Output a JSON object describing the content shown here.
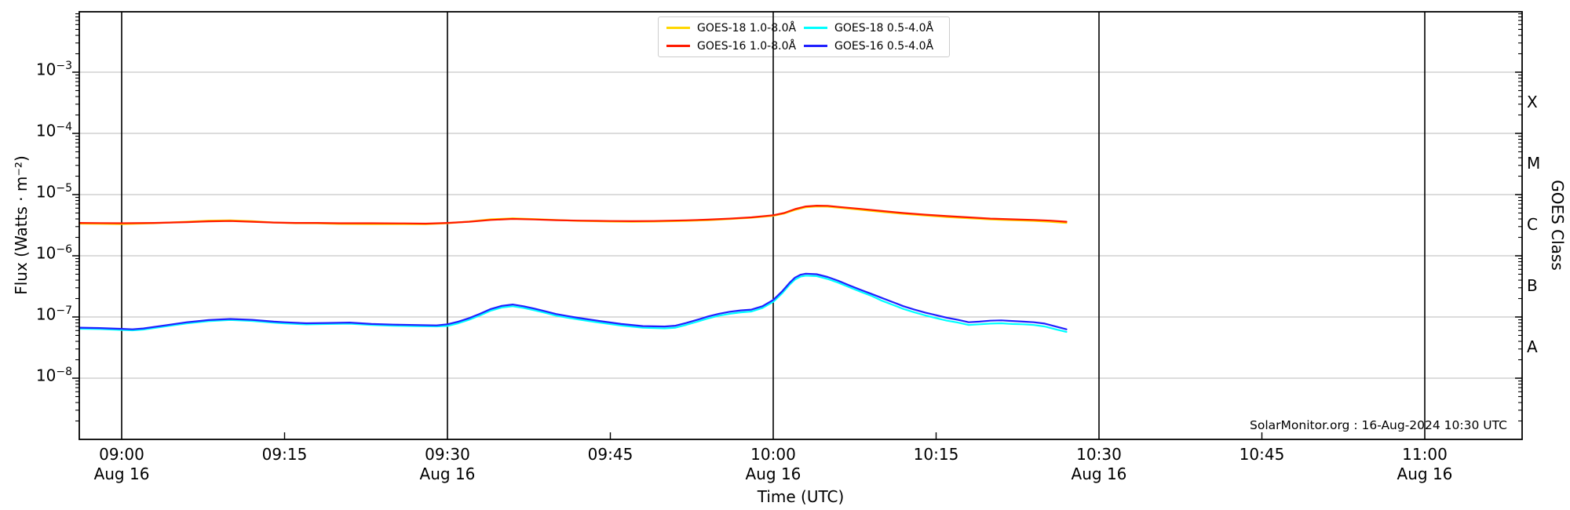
{
  "chart_data": {
    "type": "line",
    "title": "",
    "annotation": "SolarMonitor.org : 16-Aug-2024 10:30 UTC",
    "x_axis": {
      "label": "Time (UTC)",
      "visible_range_utc": [
        "08:56",
        "11:09"
      ],
      "date": "16-Aug-2024",
      "major_ticks": [
        {
          "t": 0,
          "time": "09:00",
          "date": "Aug 16"
        },
        {
          "t": 30,
          "time": "09:30",
          "date": "Aug 16"
        },
        {
          "t": 60,
          "time": "10:00",
          "date": "Aug 16"
        },
        {
          "t": 90,
          "time": "10:30",
          "date": "Aug 16"
        },
        {
          "t": 120,
          "time": "11:00",
          "date": "Aug 16"
        }
      ],
      "minor_ticks": [
        {
          "t": 15,
          "time": "09:15"
        },
        {
          "t": 45,
          "time": "09:45"
        },
        {
          "t": 75,
          "time": "10:15"
        },
        {
          "t": 105,
          "time": "10:45"
        }
      ]
    },
    "y_axis": {
      "label": "Flux (Watts · m⁻²)",
      "scale": "log",
      "log_min_exponent": -9,
      "log_max_exponent": -2,
      "tick_exponents": [
        -3,
        -4,
        -5,
        -6,
        -7,
        -8
      ]
    },
    "right_axis": {
      "label": "GOES Class",
      "classes": [
        {
          "label": "X",
          "mid_exponent": -3.5
        },
        {
          "label": "M",
          "mid_exponent": -4.5
        },
        {
          "label": "C",
          "mid_exponent": -5.5
        },
        {
          "label": "B",
          "mid_exponent": -6.5
        },
        {
          "label": "A",
          "mid_exponent": -7.5
        }
      ]
    },
    "legend": {
      "items": [
        {
          "label": "GOES-18 1.0-8.0Å",
          "color": "#ffd700"
        },
        {
          "label": "GOES-16 1.0-8.0Å",
          "color": "#ff1a00"
        },
        {
          "label": "GOES-18 0.5-4.0Å",
          "color": "#00ffff"
        },
        {
          "label": "GOES-16 0.5-4.0Å",
          "color": "#2020ff"
        }
      ]
    },
    "series": [
      {
        "name": "GOES-18 1.0-8.0Å",
        "color": "#ffd700",
        "points": [
          [
            -3.9,
            3.35e-06
          ],
          [
            0,
            3.3e-06
          ],
          [
            3,
            3.4e-06
          ],
          [
            6,
            3.6e-06
          ],
          [
            8,
            3.75e-06
          ],
          [
            10,
            3.8e-06
          ],
          [
            12,
            3.68e-06
          ],
          [
            14,
            3.5e-06
          ],
          [
            16,
            3.4e-06
          ],
          [
            18,
            3.38e-06
          ],
          [
            20,
            3.32e-06
          ],
          [
            23,
            3.3e-06
          ],
          [
            26,
            3.3e-06
          ],
          [
            28,
            3.28e-06
          ],
          [
            30,
            3.4e-06
          ],
          [
            32,
            3.62e-06
          ],
          [
            34,
            3.95e-06
          ],
          [
            36,
            4.1e-06
          ],
          [
            38,
            3.98e-06
          ],
          [
            40,
            3.85e-06
          ],
          [
            42,
            3.72e-06
          ],
          [
            45,
            3.62e-06
          ],
          [
            47,
            3.6e-06
          ],
          [
            49,
            3.62e-06
          ],
          [
            52,
            3.72e-06
          ],
          [
            54,
            3.82e-06
          ],
          [
            56,
            3.98e-06
          ],
          [
            58,
            4.18e-06
          ],
          [
            60,
            4.5e-06
          ],
          [
            61,
            4.9e-06
          ],
          [
            62,
            5.6e-06
          ],
          [
            63,
            6.2e-06
          ],
          [
            64,
            6.4e-06
          ],
          [
            65,
            6.35e-06
          ],
          [
            66,
            6.1e-06
          ],
          [
            68,
            5.65e-06
          ],
          [
            70,
            5.2e-06
          ],
          [
            72,
            4.85e-06
          ],
          [
            74,
            4.55e-06
          ],
          [
            76,
            4.3e-06
          ],
          [
            78,
            4.1e-06
          ],
          [
            80,
            3.92e-06
          ],
          [
            82,
            3.82e-06
          ],
          [
            84,
            3.72e-06
          ],
          [
            85.5,
            3.6e-06
          ],
          [
            87,
            3.45e-06
          ]
        ]
      },
      {
        "name": "GOES-16 1.0-8.0Å",
        "color": "#ff1a00",
        "points": [
          [
            -3.9,
            3.45e-06
          ],
          [
            0,
            3.4e-06
          ],
          [
            3,
            3.45e-06
          ],
          [
            6,
            3.55e-06
          ],
          [
            8,
            3.65e-06
          ],
          [
            10,
            3.7e-06
          ],
          [
            12,
            3.6e-06
          ],
          [
            14,
            3.5e-06
          ],
          [
            16,
            3.45e-06
          ],
          [
            18,
            3.45e-06
          ],
          [
            20,
            3.4e-06
          ],
          [
            23,
            3.4e-06
          ],
          [
            26,
            3.38e-06
          ],
          [
            28,
            3.35e-06
          ],
          [
            30,
            3.45e-06
          ],
          [
            32,
            3.6e-06
          ],
          [
            34,
            3.85e-06
          ],
          [
            36,
            4e-06
          ],
          [
            38,
            3.92e-06
          ],
          [
            40,
            3.82e-06
          ],
          [
            42,
            3.75e-06
          ],
          [
            45,
            3.7e-06
          ],
          [
            47,
            3.68e-06
          ],
          [
            49,
            3.7e-06
          ],
          [
            52,
            3.8e-06
          ],
          [
            54,
            3.9e-06
          ],
          [
            56,
            4.05e-06
          ],
          [
            58,
            4.25e-06
          ],
          [
            60,
            4.6e-06
          ],
          [
            61,
            5e-06
          ],
          [
            62,
            5.8e-06
          ],
          [
            63,
            6.4e-06
          ],
          [
            64,
            6.6e-06
          ],
          [
            65,
            6.55e-06
          ],
          [
            66,
            6.3e-06
          ],
          [
            68,
            5.85e-06
          ],
          [
            70,
            5.4e-06
          ],
          [
            72,
            5e-06
          ],
          [
            74,
            4.7e-06
          ],
          [
            76,
            4.45e-06
          ],
          [
            78,
            4.25e-06
          ],
          [
            80,
            4.05e-06
          ],
          [
            82,
            3.95e-06
          ],
          [
            84,
            3.85e-06
          ],
          [
            85.5,
            3.75e-06
          ],
          [
            87,
            3.6e-06
          ]
        ]
      },
      {
        "name": "GOES-18 0.5-4.0Å",
        "color": "#00ffff",
        "points": [
          [
            -3.9,
            6.43e-08
          ],
          [
            -2,
            6.34e-08
          ],
          [
            0,
            6.14e-08
          ],
          [
            1,
            6.05e-08
          ],
          [
            2,
            6.24e-08
          ],
          [
            4,
            7.01e-08
          ],
          [
            6,
            7.87e-08
          ],
          [
            8,
            8.54e-08
          ],
          [
            10,
            8.93e-08
          ],
          [
            12,
            8.64e-08
          ],
          [
            14,
            8.06e-08
          ],
          [
            15,
            7.87e-08
          ],
          [
            17,
            7.58e-08
          ],
          [
            19,
            7.68e-08
          ],
          [
            21,
            7.78e-08
          ],
          [
            23,
            7.39e-08
          ],
          [
            25,
            7.2e-08
          ],
          [
            27,
            7.1e-08
          ],
          [
            29,
            7.01e-08
          ],
          [
            30,
            7.14e-08
          ],
          [
            31,
            7.9e-08
          ],
          [
            32,
            9.02e-08
          ],
          [
            33,
            1.06e-07
          ],
          [
            34,
            1.27e-07
          ],
          [
            35,
            1.43e-07
          ],
          [
            36,
            1.5e-07
          ],
          [
            37,
            1.41e-07
          ],
          [
            38,
            1.29e-07
          ],
          [
            39,
            1.17e-07
          ],
          [
            40,
            1.05e-07
          ],
          [
            41,
            9.78e-08
          ],
          [
            42,
            9.12e-08
          ],
          [
            44,
            8.08e-08
          ],
          [
            46,
            7.24e-08
          ],
          [
            48,
            6.67e-08
          ],
          [
            50,
            6.51e-08
          ],
          [
            51,
            6.7e-08
          ],
          [
            52,
            7.44e-08
          ],
          [
            53,
            8.37e-08
          ],
          [
            54,
            9.49e-08
          ],
          [
            55,
            1.05e-07
          ],
          [
            56,
            1.13e-07
          ],
          [
            57,
            1.19e-07
          ],
          [
            58,
            1.23e-07
          ],
          [
            59,
            1.4e-07
          ],
          [
            60,
            1.77e-07
          ],
          [
            60.8,
            2.42e-07
          ],
          [
            61.5,
            3.35e-07
          ],
          [
            62,
            4.09e-07
          ],
          [
            62.5,
            4.56e-07
          ],
          [
            63,
            4.74e-07
          ],
          [
            64,
            4.65e-07
          ],
          [
            65,
            4.19e-07
          ],
          [
            66,
            3.63e-07
          ],
          [
            67,
            3.07e-07
          ],
          [
            68,
            2.6e-07
          ],
          [
            69,
            2.23e-07
          ],
          [
            70,
            1.85e-07
          ],
          [
            71,
            1.58e-07
          ],
          [
            72,
            1.35e-07
          ],
          [
            73,
            1.19e-07
          ],
          [
            74,
            1.06e-07
          ],
          [
            75,
            9.6e-08
          ],
          [
            76,
            8.7e-08
          ],
          [
            77,
            8.1e-08
          ],
          [
            78,
            7.4e-08
          ],
          [
            79,
            7.6e-08
          ],
          [
            80,
            7.8e-08
          ],
          [
            81,
            7.9e-08
          ],
          [
            82,
            7.7e-08
          ],
          [
            83,
            7.6e-08
          ],
          [
            84,
            7.4e-08
          ],
          [
            85,
            7e-08
          ],
          [
            86,
            6.3e-08
          ],
          [
            87,
            5.7e-08
          ]
        ]
      },
      {
        "name": "GOES-16 0.5-4.0Å",
        "color": "#2020ff",
        "points": [
          [
            -3.9,
            6.7e-08
          ],
          [
            -2,
            6.6e-08
          ],
          [
            0,
            6.4e-08
          ],
          [
            1,
            6.3e-08
          ],
          [
            2,
            6.5e-08
          ],
          [
            4,
            7.3e-08
          ],
          [
            6,
            8.2e-08
          ],
          [
            8,
            8.9e-08
          ],
          [
            10,
            9.3e-08
          ],
          [
            12,
            9e-08
          ],
          [
            14,
            8.4e-08
          ],
          [
            15,
            8.2e-08
          ],
          [
            17,
            7.9e-08
          ],
          [
            19,
            8e-08
          ],
          [
            21,
            8.1e-08
          ],
          [
            23,
            7.7e-08
          ],
          [
            25,
            7.5e-08
          ],
          [
            27,
            7.4e-08
          ],
          [
            29,
            7.3e-08
          ],
          [
            30,
            7.6e-08
          ],
          [
            31,
            8.4e-08
          ],
          [
            32,
            9.6e-08
          ],
          [
            33,
            1.13e-07
          ],
          [
            34,
            1.35e-07
          ],
          [
            35,
            1.52e-07
          ],
          [
            36,
            1.6e-07
          ],
          [
            37,
            1.5e-07
          ],
          [
            38,
            1.37e-07
          ],
          [
            39,
            1.24e-07
          ],
          [
            40,
            1.12e-07
          ],
          [
            41,
            1.04e-07
          ],
          [
            42,
            9.7e-08
          ],
          [
            44,
            8.6e-08
          ],
          [
            46,
            7.7e-08
          ],
          [
            48,
            7.1e-08
          ],
          [
            50,
            7e-08
          ],
          [
            51,
            7.2e-08
          ],
          [
            52,
            8e-08
          ],
          [
            53,
            9e-08
          ],
          [
            54,
            1.02e-07
          ],
          [
            55,
            1.13e-07
          ],
          [
            56,
            1.22e-07
          ],
          [
            57,
            1.28e-07
          ],
          [
            58,
            1.32e-07
          ],
          [
            59,
            1.5e-07
          ],
          [
            60,
            1.9e-07
          ],
          [
            60.8,
            2.6e-07
          ],
          [
            61.5,
            3.6e-07
          ],
          [
            62,
            4.4e-07
          ],
          [
            62.5,
            4.9e-07
          ],
          [
            63,
            5.1e-07
          ],
          [
            64,
            5e-07
          ],
          [
            65,
            4.5e-07
          ],
          [
            66,
            3.9e-07
          ],
          [
            67,
            3.3e-07
          ],
          [
            68,
            2.8e-07
          ],
          [
            69,
            2.4e-07
          ],
          [
            70,
            2.05e-07
          ],
          [
            71,
            1.75e-07
          ],
          [
            72,
            1.5e-07
          ],
          [
            73,
            1.32e-07
          ],
          [
            74,
            1.18e-07
          ],
          [
            75,
            1.07e-07
          ],
          [
            76,
            9.7e-08
          ],
          [
            77,
            9e-08
          ],
          [
            78,
            8.2e-08
          ],
          [
            79,
            8.4e-08
          ],
          [
            80,
            8.7e-08
          ],
          [
            81,
            8.8e-08
          ],
          [
            82,
            8.6e-08
          ],
          [
            83,
            8.4e-08
          ],
          [
            84,
            8.2e-08
          ],
          [
            85,
            7.8e-08
          ],
          [
            86,
            7e-08
          ],
          [
            87,
            6.3e-08
          ]
        ]
      }
    ],
    "style": {
      "grid_color": "#c8c8c8",
      "time_line_color": "#000000",
      "spine_color": "#000000",
      "background": "#ffffff"
    }
  }
}
